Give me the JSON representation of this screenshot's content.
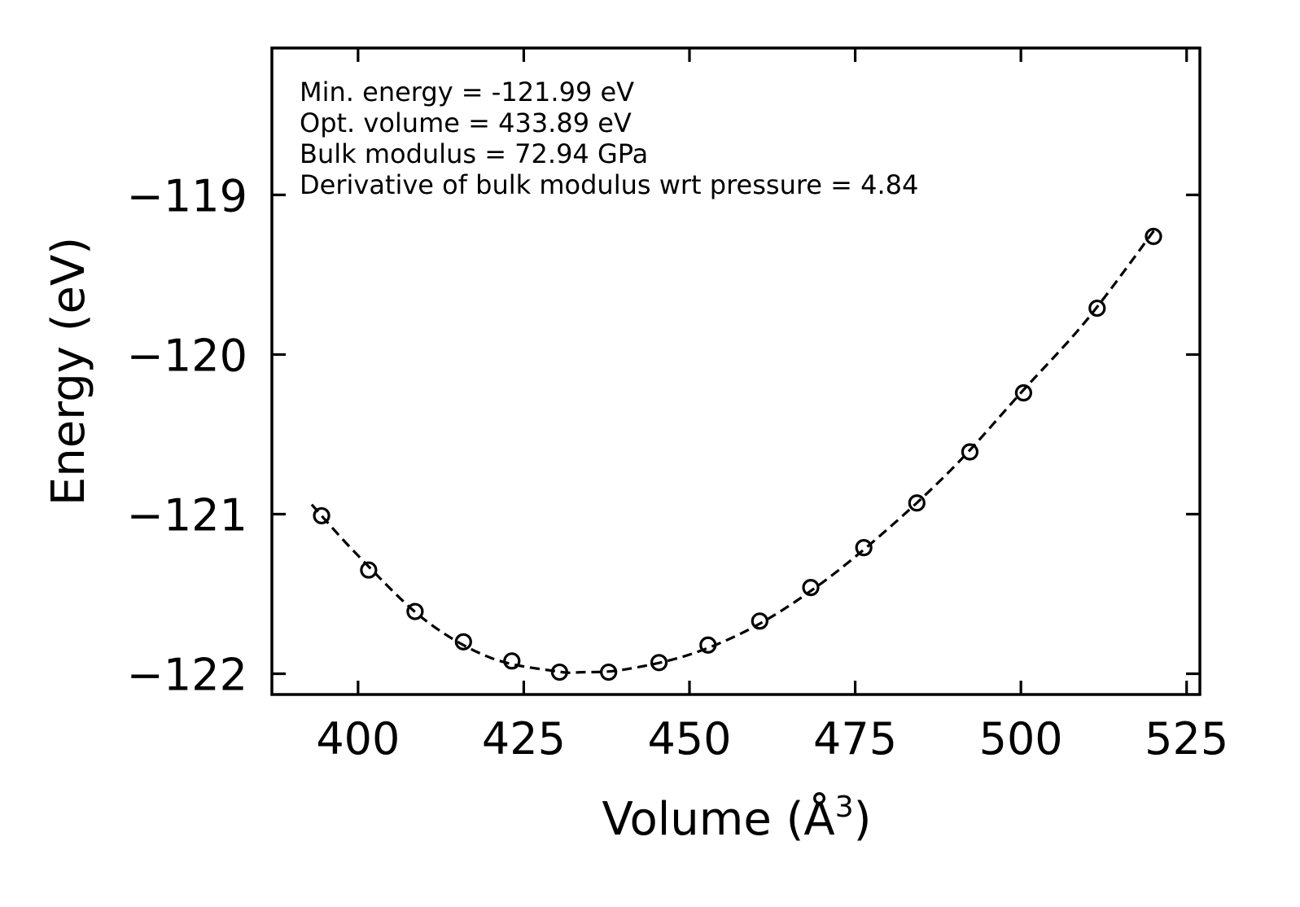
{
  "chart_data": {
    "type": "scatter",
    "title": "",
    "xlabel": "Volume (Å",
    "xlabel_superscript": "3",
    "xlabel_close": ")",
    "ylabel": "Energy (eV)",
    "xlim": [
      387,
      527
    ],
    "ylim": [
      -122.13,
      -118.08
    ],
    "xticks": [
      400,
      425,
      450,
      475,
      500,
      525
    ],
    "xtick_labels": [
      "400",
      "425",
      "450",
      "475",
      "500",
      "525"
    ],
    "yticks": [
      -119,
      -120,
      -121,
      -122
    ],
    "ytick_labels": [
      "−119",
      "−120",
      "−121",
      "−122"
    ],
    "annotations": [
      "Min. energy = -121.99 eV",
      "Opt. volume = 433.89 eV",
      "Bulk modulus = 72.94 GPa",
      "Derivative of bulk modulus wrt pressure = 4.84"
    ],
    "series": [
      {
        "name": "data points",
        "marker": "open-circle",
        "x": [
          394.5,
          401.6,
          408.6,
          415.9,
          423.2,
          430.4,
          437.8,
          445.4,
          452.8,
          460.6,
          468.3,
          476.3,
          484.3,
          492.3,
          500.4,
          511.5,
          520.0
        ],
        "y": [
          -121.01,
          -121.35,
          -121.61,
          -121.8,
          -121.92,
          -121.99,
          -121.99,
          -121.93,
          -121.82,
          -121.67,
          -121.46,
          -121.21,
          -120.93,
          -120.61,
          -120.24,
          -119.71,
          -119.26
        ]
      },
      {
        "name": "fit",
        "style": "dashed",
        "x": [
          393.0,
          400,
          410,
          420,
          430,
          433.89,
          440,
          450,
          460,
          470,
          480,
          490,
          500,
          510,
          520.5
        ],
        "y": [
          -120.94,
          -121.26,
          -121.66,
          -121.9,
          -121.985,
          -121.99,
          -121.975,
          -121.88,
          -121.7,
          -121.43,
          -121.09,
          -120.7,
          -120.24,
          -119.78,
          -119.2
        ]
      }
    ],
    "colors": {
      "line": "#000000",
      "background": "#ffffff"
    }
  }
}
